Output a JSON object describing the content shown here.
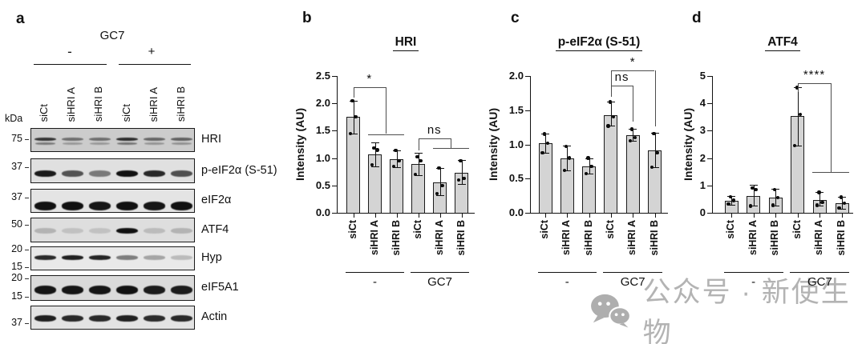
{
  "panel_a": {
    "label": "a",
    "header": "GC7",
    "group_signs": [
      "-",
      "+"
    ],
    "kda_unit": "kDa",
    "lane_labels": [
      "siCt",
      "siHRI A",
      "siHRI B",
      "siCt",
      "siHRI A",
      "siHRI B"
    ],
    "blots": [
      {
        "protein": "HRI",
        "markers": [
          "75"
        ],
        "bg": "#cccccc",
        "double": true,
        "band_intensities": [
          0.78,
          0.48,
          0.48,
          0.82,
          0.52,
          0.55
        ]
      },
      {
        "protein": "p-eIF2α (S-51)",
        "markers": [
          "37"
        ],
        "bg": "#e0e0e0",
        "double": false,
        "band_intensities": [
          0.92,
          0.66,
          0.48,
          0.97,
          0.86,
          0.68
        ]
      },
      {
        "protein": "eIF2α",
        "markers": [
          "37"
        ],
        "bg": "#e4e4e4",
        "double": false,
        "band_intensities": [
          0.97,
          0.97,
          0.95,
          0.97,
          0.95,
          0.97
        ]
      },
      {
        "protein": "ATF4",
        "markers": [
          "50"
        ],
        "bg": "#dedede",
        "double": false,
        "band_intensities": [
          0.2,
          0.13,
          0.13,
          0.97,
          0.16,
          0.2
        ]
      },
      {
        "protein": "Hyp",
        "markers": [
          "20",
          "15"
        ],
        "bg": "#e9e9e9",
        "double": false,
        "band_intensities": [
          0.85,
          0.9,
          0.88,
          0.48,
          0.3,
          0.2
        ]
      },
      {
        "protein": "eIF5A1",
        "markers": [
          "20",
          "15"
        ],
        "bg": "#dadada",
        "double": false,
        "band_intensities": [
          0.95,
          0.95,
          0.95,
          0.97,
          0.92,
          0.92
        ]
      },
      {
        "protein": "Actin",
        "markers": [
          "37"
        ],
        "bg": "#e3e3e3",
        "double": false,
        "band_intensities": [
          0.9,
          0.86,
          0.86,
          0.9,
          0.85,
          0.86
        ]
      }
    ]
  },
  "chart_data": [
    {
      "type": "bar",
      "panel_label": "b",
      "title": "HRI",
      "ylabel": "Intensity (AU)",
      "ylim": [
        0,
        2.5
      ],
      "yticks": [
        "0.0",
        "0.5",
        "1.0",
        "1.5",
        "2.0",
        "2.5"
      ],
      "categories": [
        "siCt",
        "siHRI A",
        "siHRI B",
        "siCt",
        "siHRI A",
        "siHRI B"
      ],
      "values": [
        1.75,
        1.07,
        0.98,
        0.89,
        0.56,
        0.73
      ],
      "err_low": [
        1.45,
        0.85,
        0.84,
        0.68,
        0.32,
        0.52
      ],
      "err_high": [
        2.05,
        1.28,
        1.14,
        1.1,
        0.82,
        0.96
      ],
      "points": [
        [
          1.45,
          1.75,
          2.05
        ],
        [
          0.88,
          1.15,
          1.18
        ],
        [
          0.85,
          0.95,
          1.14
        ],
        [
          0.7,
          0.95,
          1.02
        ],
        [
          0.35,
          0.5,
          0.82
        ],
        [
          0.6,
          0.63,
          0.95
        ]
      ],
      "groups": [
        {
          "label": "-",
          "bars": [
            0,
            2
          ]
        },
        {
          "label": "GC7",
          "bars": [
            3,
            5
          ]
        }
      ],
      "significance": [
        {
          "label": "*",
          "style": "multi",
          "from_bar": 0,
          "to_bars": [
            1,
            2
          ],
          "y_top": 2.3,
          "tick_bottom": 2.1,
          "y_span": 1.44
        },
        {
          "label": "ns",
          "style": "multi",
          "from_bar": 3,
          "to_bars": [
            4,
            5
          ],
          "y_top": 1.36,
          "tick_bottom": 1.14,
          "y_span": 1.18
        }
      ],
      "bar_fill": "#d4d4d4",
      "grid": false,
      "legend": false
    },
    {
      "type": "bar",
      "panel_label": "c",
      "title": "p-eIF2α (S-51)",
      "ylabel": "Intensity (AU)",
      "ylim": [
        0,
        2.0
      ],
      "yticks": [
        "0.0",
        "0.5",
        "1.0",
        "1.5",
        "2.0"
      ],
      "categories": [
        "siCt",
        "siHRI A",
        "siHRI B",
        "siCt",
        "siHRI A",
        "siHRI B"
      ],
      "values": [
        1.02,
        0.8,
        0.68,
        1.43,
        1.13,
        0.91
      ],
      "err_low": [
        0.88,
        0.62,
        0.57,
        1.27,
        1.05,
        0.67
      ],
      "err_high": [
        1.16,
        0.98,
        0.8,
        1.62,
        1.23,
        1.17
      ],
      "points": [
        [
          0.88,
          1.02,
          1.15
        ],
        [
          0.62,
          0.8,
          0.97
        ],
        [
          0.57,
          0.68,
          0.8
        ],
        [
          1.27,
          1.4,
          1.62
        ],
        [
          1.05,
          1.1,
          1.22
        ],
        [
          0.67,
          0.88,
          1.16
        ]
      ],
      "groups": [
        {
          "label": "-",
          "bars": [
            0,
            2
          ]
        },
        {
          "label": "GC7",
          "bars": [
            3,
            5
          ]
        }
      ],
      "significance": [
        {
          "label": "ns",
          "style": "pair",
          "from_bar": 3,
          "to_bar": 4,
          "y_top": 1.86,
          "from_bottom": 1.7,
          "to_bottom": 1.33
        },
        {
          "label": "*",
          "style": "pair",
          "from_bar": 3,
          "to_bar": 5,
          "y_top": 2.08,
          "from_bottom": 1.7,
          "to_bottom": 1.26
        }
      ],
      "bar_fill": "#d4d4d4",
      "grid": false,
      "legend": false
    },
    {
      "type": "bar",
      "panel_label": "d",
      "title": "ATF4",
      "ylabel": "Intensity (AU)",
      "ylim": [
        0,
        5
      ],
      "yticks": [
        "0",
        "1",
        "2",
        "3",
        "4",
        "5"
      ],
      "categories": [
        "siCt",
        "siHRI A",
        "siHRI B",
        "siCt",
        "siHRI A",
        "siHRI B"
      ],
      "values": [
        0.45,
        0.62,
        0.55,
        3.55,
        0.47,
        0.35
      ],
      "err_low": [
        0.3,
        0.25,
        0.27,
        2.45,
        0.25,
        0.15
      ],
      "err_high": [
        0.62,
        1.03,
        0.87,
        4.6,
        0.75,
        0.58
      ],
      "points": [
        [
          0.32,
          0.45,
          0.58
        ],
        [
          0.25,
          0.85,
          0.9
        ],
        [
          0.28,
          0.55,
          0.85
        ],
        [
          2.45,
          3.6,
          4.58
        ],
        [
          0.28,
          0.38,
          0.74
        ],
        [
          0.18,
          0.35,
          0.57
        ]
      ],
      "groups": [
        {
          "label": "-",
          "bars": [
            0,
            2
          ]
        },
        {
          "label": "GC7",
          "bars": [
            3,
            5
          ]
        }
      ],
      "significance": [
        {
          "label": "****",
          "style": "multi",
          "from_bar": 3,
          "to_bars": [
            4,
            5
          ],
          "y_top": 4.75,
          "tick_bottom": 4.42,
          "y_span": 1.5
        }
      ],
      "bar_fill": "#d4d4d4",
      "grid": false,
      "legend": false
    }
  ],
  "watermark": {
    "icon": "wechat-icon",
    "text": "公众号 · 新使生物",
    "color": "#b3b3b3"
  }
}
